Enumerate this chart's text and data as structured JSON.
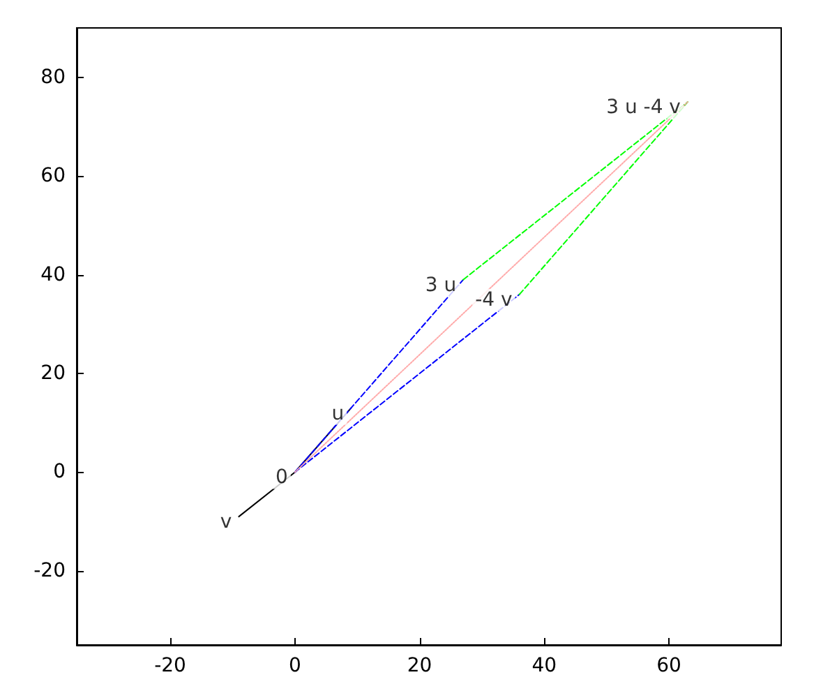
{
  "chart_data": {
    "type": "line",
    "xlim": [
      -35,
      78
    ],
    "ylim": [
      -35,
      90
    ],
    "xticks": [
      -20,
      0,
      20,
      40,
      60
    ],
    "yticks": [
      -20,
      0,
      20,
      40,
      60,
      80
    ],
    "grid": false,
    "marker": "none",
    "series": [
      {
        "color": "#000000",
        "line_style": "solid",
        "x": [
          -9,
          0,
          9
        ],
        "values": [
          -9,
          0,
          13
        ]
      },
      {
        "color": "#0000ff",
        "line_style": "dashed",
        "x": [
          0,
          27
        ],
        "values": [
          0,
          39
        ]
      },
      {
        "color": "#0000ff",
        "line_style": "dashed",
        "x": [
          0,
          36
        ],
        "values": [
          0,
          36
        ]
      },
      {
        "color": "#00ff00",
        "line_style": "dashed",
        "x": [
          27,
          63
        ],
        "values": [
          39,
          75
        ]
      },
      {
        "color": "#00ff00",
        "line_style": "dashed",
        "x": [
          36,
          63
        ],
        "values": [
          36,
          75
        ]
      },
      {
        "color": "#ffaaaa",
        "line_style": "dotted",
        "x": [
          0,
          63
        ],
        "values": [
          0,
          75
        ]
      }
    ],
    "annotations": [
      {
        "text": "0",
        "x": 0,
        "y": 0
      },
      {
        "text": "u",
        "x": 9,
        "y": 13
      },
      {
        "text": "v",
        "x": -9,
        "y": -9
      },
      {
        "text": "3 u",
        "x": 27,
        "y": 39
      },
      {
        "text": "-4 v",
        "x": 36,
        "y": 36
      },
      {
        "text": "3 u -4 v",
        "x": 63,
        "y": 75
      }
    ]
  }
}
